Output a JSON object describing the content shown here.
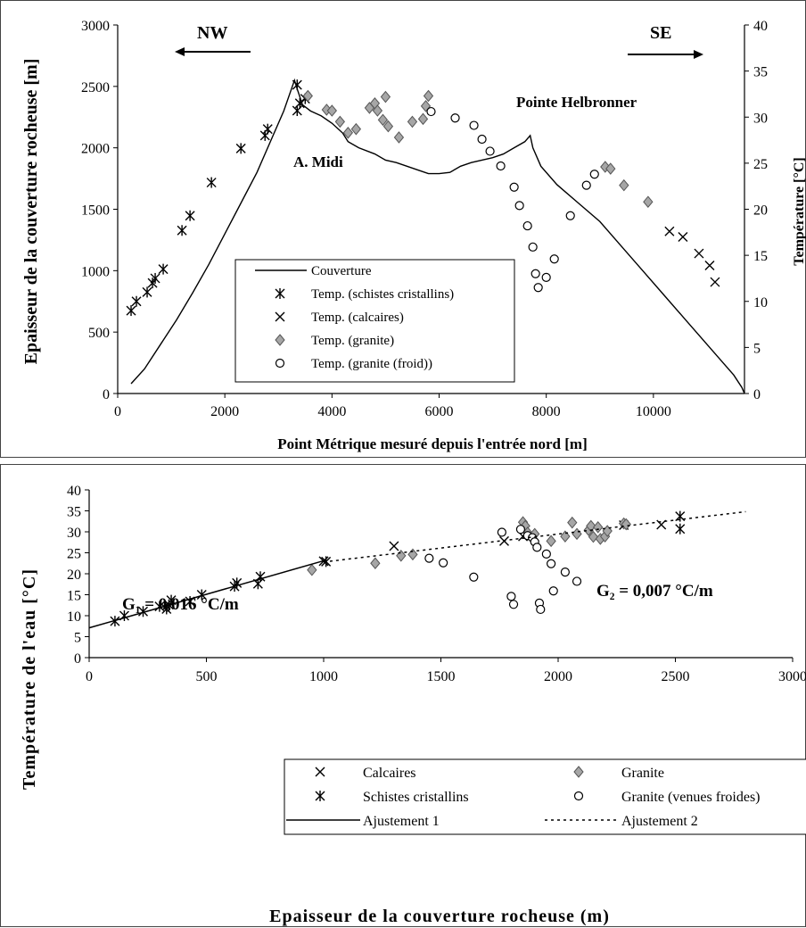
{
  "chart_data": [
    {
      "type": "line",
      "xlabel": "Point Métrique mesuré depuis l'entrée nord [m]",
      "ylabel": "Epaisseur de la couverture rocheuse [m]",
      "y2label": "Température [°C]",
      "xlim": [
        0,
        11700
      ],
      "ylim": [
        0,
        3000
      ],
      "y2lim": [
        0,
        40
      ],
      "xticks": [
        "0",
        "2000",
        "4000",
        "6000",
        "8000",
        "10000"
      ],
      "xtick_values": [
        0,
        2000,
        4000,
        6000,
        8000,
        10000
      ],
      "yticks": [
        "0",
        "500",
        "1000",
        "1500",
        "2000",
        "2500",
        "3000"
      ],
      "ytick_values": [
        0,
        500,
        1000,
        1500,
        2000,
        2500,
        3000
      ],
      "y2ticks": [
        "0",
        "5",
        "10",
        "15",
        "20",
        "25",
        "30",
        "35",
        "40"
      ],
      "y2tick_values": [
        0,
        5,
        10,
        15,
        20,
        25,
        30,
        35,
        40
      ],
      "annotations": {
        "nw": "NW",
        "se": "SE",
        "midi": "A. Midi",
        "helbronner": "Pointe Helbronner"
      },
      "legend_position": "bottom-left",
      "grid": false,
      "series": [
        {
          "name": "Couverture",
          "style": "line",
          "axis": "left",
          "points": [
            [
              250,
              80
            ],
            [
              500,
              200
            ],
            [
              800,
              400
            ],
            [
              1100,
              600
            ],
            [
              1400,
              820
            ],
            [
              1700,
              1050
            ],
            [
              2000,
              1300
            ],
            [
              2300,
              1550
            ],
            [
              2600,
              1800
            ],
            [
              2900,
              2100
            ],
            [
              3100,
              2300
            ],
            [
              3300,
              2550
            ],
            [
              3350,
              2480
            ],
            [
              3450,
              2350
            ],
            [
              3600,
              2300
            ],
            [
              3800,
              2260
            ],
            [
              4000,
              2200
            ],
            [
              4200,
              2120
            ],
            [
              4300,
              2050
            ],
            [
              4500,
              2000
            ],
            [
              4800,
              1950
            ],
            [
              5000,
              1900
            ],
            [
              5200,
              1880
            ],
            [
              5400,
              1850
            ],
            [
              5600,
              1820
            ],
            [
              5800,
              1790
            ],
            [
              6000,
              1790
            ],
            [
              6200,
              1800
            ],
            [
              6400,
              1850
            ],
            [
              6600,
              1880
            ],
            [
              6800,
              1900
            ],
            [
              7000,
              1920
            ],
            [
              7200,
              1950
            ],
            [
              7400,
              2000
            ],
            [
              7600,
              2050
            ],
            [
              7700,
              2100
            ],
            [
              7750,
              2000
            ],
            [
              7900,
              1850
            ],
            [
              8200,
              1700
            ],
            [
              8600,
              1550
            ],
            [
              9000,
              1400
            ],
            [
              9400,
              1200
            ],
            [
              9800,
              1000
            ],
            [
              10200,
              800
            ],
            [
              10600,
              600
            ],
            [
              11000,
              400
            ],
            [
              11300,
              250
            ],
            [
              11500,
              150
            ],
            [
              11650,
              50
            ],
            [
              11700,
              0
            ]
          ]
        },
        {
          "name": "Temp. (schistes cristallins)",
          "style": "asterisk",
          "axis": "right",
          "points": [
            [
              250,
              9
            ],
            [
              350,
              10
            ],
            [
              550,
              11
            ],
            [
              650,
              12
            ],
            [
              700,
              12.5
            ],
            [
              850,
              13.5
            ],
            [
              1200,
              17.7
            ],
            [
              1350,
              19.3
            ],
            [
              1750,
              22.9
            ],
            [
              2300,
              26.6
            ],
            [
              2750,
              28
            ],
            [
              2800,
              28.7
            ],
            [
              3350,
              33.5
            ],
            [
              3350,
              30.7
            ],
            [
              3400,
              31.5
            ],
            [
              3500,
              32
            ]
          ]
        },
        {
          "name": "Temp. (calcaires)",
          "style": "x",
          "axis": "right",
          "points": [
            [
              10300,
              17.6
            ],
            [
              10550,
              17
            ],
            [
              10850,
              15.2
            ],
            [
              11050,
              13.9
            ],
            [
              11150,
              12.1
            ]
          ]
        },
        {
          "name": "Temp. (granite)",
          "style": "diamond",
          "axis": "right",
          "points": [
            [
              3550,
              32.3
            ],
            [
              3900,
              30.8
            ],
            [
              4000,
              30.7
            ],
            [
              4150,
              29.5
            ],
            [
              4300,
              28.3
            ],
            [
              4450,
              28.7
            ],
            [
              4700,
              31
            ],
            [
              4800,
              31.5
            ],
            [
              4850,
              30.7
            ],
            [
              4950,
              29.7
            ],
            [
              5000,
              32.2
            ],
            [
              5050,
              29
            ],
            [
              5250,
              27.8
            ],
            [
              5500,
              29.5
            ],
            [
              5700,
              29.8
            ],
            [
              5750,
              31.2
            ],
            [
              5800,
              32.3
            ],
            [
              9100,
              24.6
            ],
            [
              9200,
              24.4
            ],
            [
              9450,
              22.6
            ],
            [
              9900,
              20.8
            ]
          ]
        },
        {
          "name": "Temp. (granite (froid))",
          "style": "circle",
          "axis": "right",
          "points": [
            [
              5850,
              30.6
            ],
            [
              6300,
              29.9
            ],
            [
              6650,
              29.1
            ],
            [
              6800,
              27.6
            ],
            [
              6950,
              26.3
            ],
            [
              7150,
              24.7
            ],
            [
              7400,
              22.4
            ],
            [
              7500,
              20.4
            ],
            [
              7650,
              18.2
            ],
            [
              7750,
              15.9
            ],
            [
              7800,
              13
            ],
            [
              7850,
              11.5
            ],
            [
              8000,
              12.6
            ],
            [
              8150,
              14.6
            ],
            [
              8450,
              19.3
            ],
            [
              8750,
              22.6
            ],
            [
              8900,
              23.8
            ]
          ]
        }
      ]
    },
    {
      "type": "scatter",
      "xlabel": "Epaisseur de la couverture rocheuse (m)",
      "ylabel": "Température de l'eau [°C]",
      "xlim": [
        0,
        3000
      ],
      "ylim": [
        0,
        40
      ],
      "xticks": [
        "0",
        "500",
        "1000",
        "1500",
        "2000",
        "2500",
        "3000"
      ],
      "xtick_values": [
        0,
        500,
        1000,
        1500,
        2000,
        2500,
        3000
      ],
      "yticks": [
        "0",
        "5",
        "10",
        "15",
        "20",
        "25",
        "30",
        "35",
        "40"
      ],
      "ytick_values": [
        0,
        5,
        10,
        15,
        20,
        25,
        30,
        35,
        40
      ],
      "annotations": {
        "g1": "G₁ = 0,016 °C/m",
        "g2": "G₂ = 0,007 °C/m"
      },
      "legend_position": "bottom-right",
      "grid": false,
      "series": [
        {
          "name": "Calcaires",
          "style": "x",
          "points": [
            [
              1000,
              23
            ],
            [
              1300,
              26.6
            ],
            [
              1770,
              27.8
            ],
            [
              1850,
              28.9
            ],
            [
              2280,
              31.6
            ],
            [
              2440,
              31.7
            ]
          ]
        },
        {
          "name": "Schistes cristallins",
          "style": "asterisk",
          "points": [
            [
              110,
              8.7
            ],
            [
              150,
              10
            ],
            [
              230,
              11
            ],
            [
              300,
              12.2
            ],
            [
              330,
              11.6
            ],
            [
              340,
              12.6
            ],
            [
              350,
              13.7
            ],
            [
              430,
              13.4
            ],
            [
              480,
              15
            ],
            [
              620,
              17
            ],
            [
              630,
              17.8
            ],
            [
              720,
              17.6
            ],
            [
              730,
              19.3
            ],
            [
              1010,
              22.9
            ],
            [
              2520,
              30.7
            ],
            [
              2520,
              33.7
            ]
          ]
        },
        {
          "name": "Granite",
          "style": "diamond",
          "points": [
            [
              950,
              20.9
            ],
            [
              1220,
              22.5
            ],
            [
              1330,
              24.3
            ],
            [
              1380,
              24.6
            ],
            [
              1850,
              32.3
            ],
            [
              1860,
              31.4
            ],
            [
              1870,
              29.8
            ],
            [
              1900,
              29.5
            ],
            [
              1970,
              27.8
            ],
            [
              2030,
              28.9
            ],
            [
              2060,
              32.2
            ],
            [
              2080,
              29.5
            ],
            [
              2130,
              30.4
            ],
            [
              2140,
              31.4
            ],
            [
              2150,
              28.8
            ],
            [
              2170,
              31.1
            ],
            [
              2180,
              28.3
            ],
            [
              2200,
              28.9
            ],
            [
              2210,
              30.2
            ],
            [
              2280,
              32
            ],
            [
              2290,
              31.8
            ]
          ]
        },
        {
          "name": "Granite (venues froides)",
          "style": "circle",
          "points": [
            [
              1450,
              23.7
            ],
            [
              1510,
              22.6
            ],
            [
              1640,
              19.2
            ],
            [
              1760,
              29.9
            ],
            [
              1800,
              14.6
            ],
            [
              1810,
              12.7
            ],
            [
              1840,
              30.6
            ],
            [
              1870,
              29.1
            ],
            [
              1890,
              28.6
            ],
            [
              1900,
              27.6
            ],
            [
              1910,
              26.3
            ],
            [
              1920,
              13
            ],
            [
              1925,
              11.5
            ],
            [
              1950,
              24.7
            ],
            [
              1970,
              22.4
            ],
            [
              1980,
              15.9
            ],
            [
              2030,
              20.4
            ],
            [
              2080,
              18.2
            ]
          ]
        },
        {
          "name": "Ajustement 1",
          "style": "line-solid",
          "points": [
            [
              0,
              7.1
            ],
            [
              1000,
              23.1
            ]
          ]
        },
        {
          "name": "Ajustement 2",
          "style": "line-dotted",
          "points": [
            [
              1000,
              22.8
            ],
            [
              2800,
              34.8
            ]
          ]
        }
      ]
    }
  ]
}
